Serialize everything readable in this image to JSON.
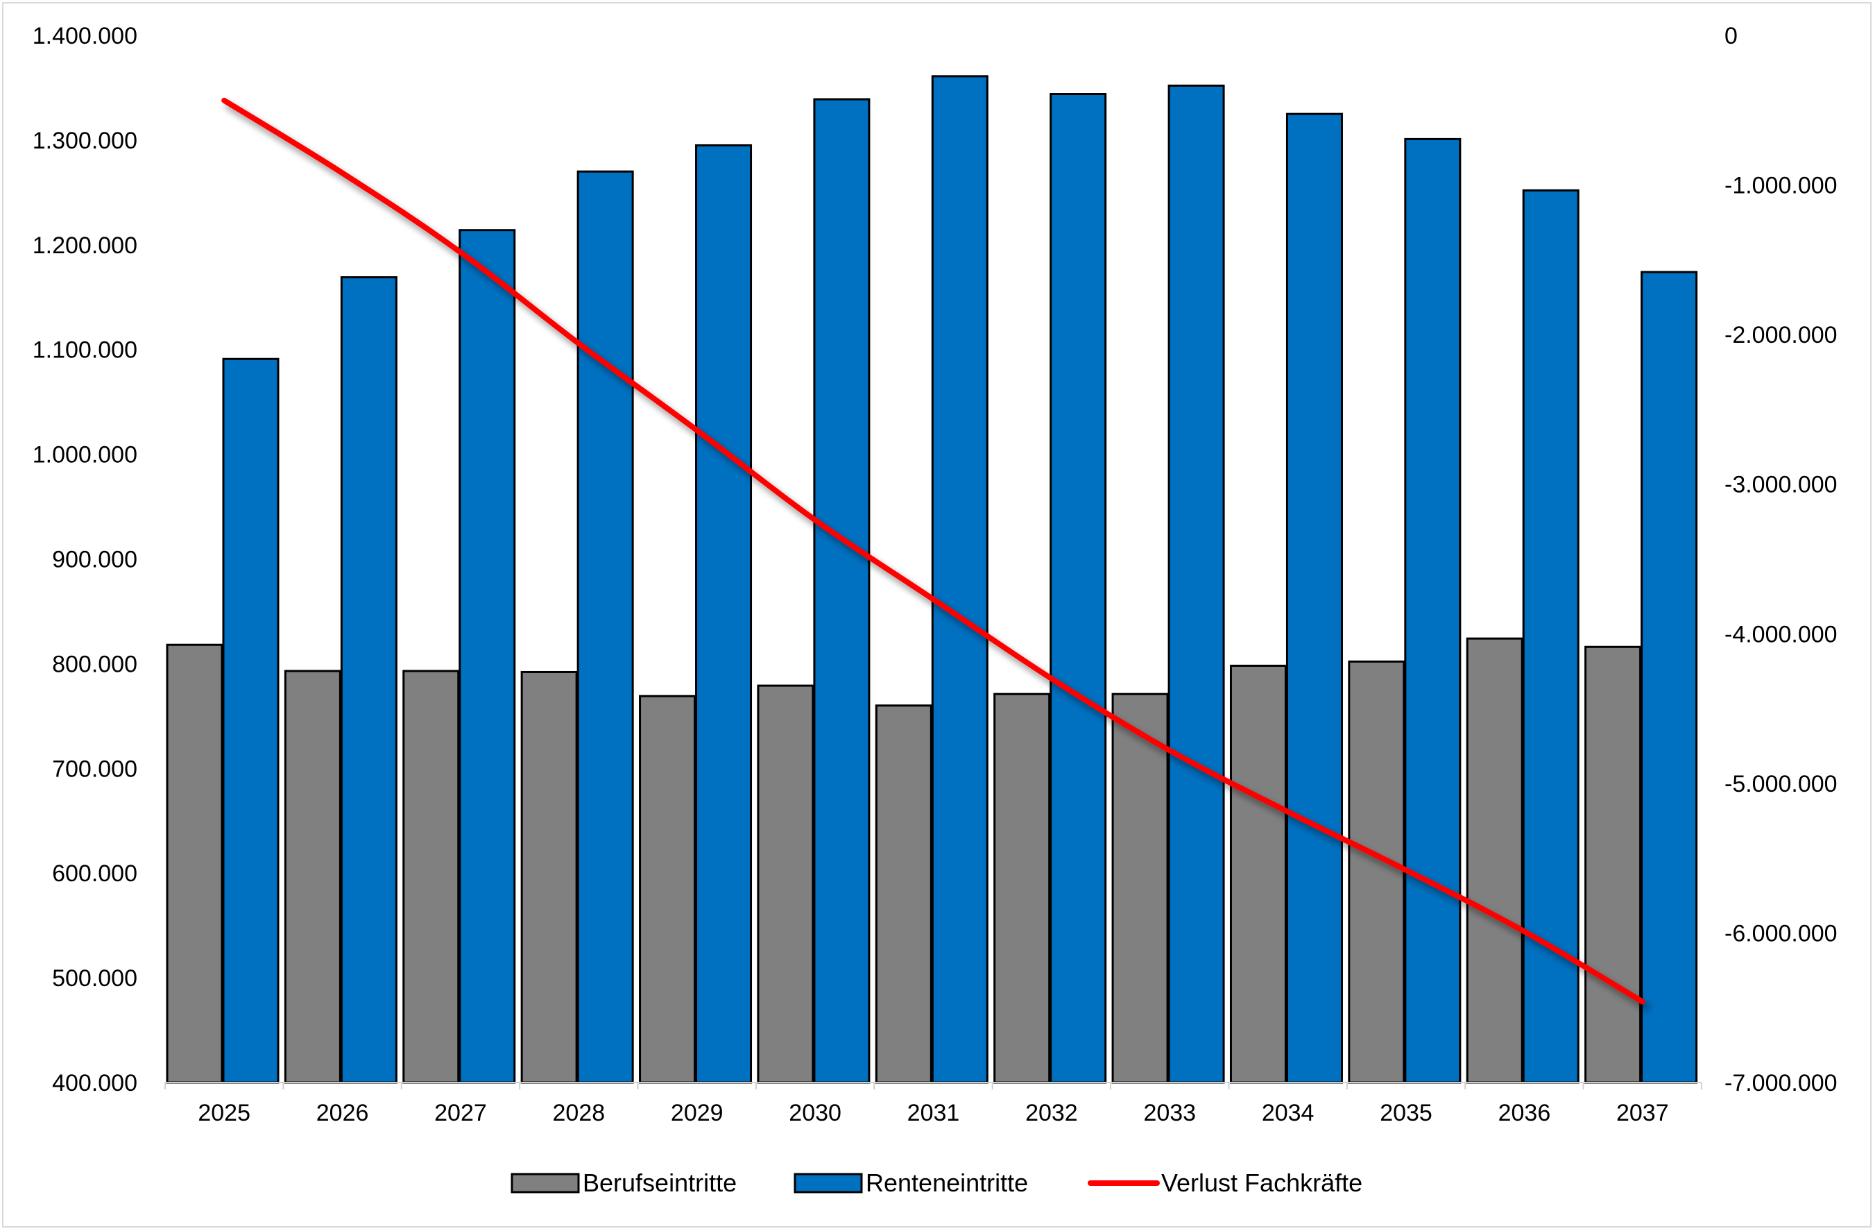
{
  "chart_data": {
    "type": "bar",
    "categories": [
      "2025",
      "2026",
      "2027",
      "2028",
      "2029",
      "2030",
      "2031",
      "2032",
      "2033",
      "2034",
      "2035",
      "2036",
      "2037"
    ],
    "series": [
      {
        "name": "Berufseintritte",
        "kind": "bar",
        "axis": "left",
        "color": "#808080",
        "values": [
          818000,
          793000,
          793000,
          792000,
          769000,
          779000,
          760000,
          771000,
          771000,
          798000,
          802000,
          824000,
          816000
        ]
      },
      {
        "name": "Renteneintritte",
        "kind": "bar",
        "axis": "left",
        "color": "#0070C0",
        "values": [
          1091000,
          1169000,
          1214000,
          1270000,
          1295000,
          1339000,
          1361000,
          1344000,
          1352000,
          1325000,
          1301000,
          1252000,
          1174000
        ]
      },
      {
        "name": "Verlust Fachkräfte",
        "kind": "line",
        "axis": "right",
        "color": "#FF0000",
        "values": [
          -435000,
          -920000,
          -1450000,
          -2060000,
          -2640000,
          -3240000,
          -3770000,
          -4300000,
          -4780000,
          -5190000,
          -5580000,
          -5990000,
          -6460000
        ]
      }
    ],
    "y_left": {
      "range": [
        400000,
        1400000
      ],
      "ticks": [
        400000,
        500000,
        600000,
        700000,
        800000,
        900000,
        1000000,
        1100000,
        1200000,
        1300000,
        1400000
      ],
      "tick_labels": [
        "400.000",
        "500.000",
        "600.000",
        "700.000",
        "800.000",
        "900.000",
        "1.000.000",
        "1.100.000",
        "1.200.000",
        "1.300.000",
        "1.400.000"
      ]
    },
    "y_right": {
      "range": [
        -7000000,
        0
      ],
      "ticks": [
        0,
        -1000000,
        -2000000,
        -3000000,
        -4000000,
        -5000000,
        -6000000,
        -7000000
      ],
      "tick_labels": [
        "0",
        "-1.000.000",
        "-2.000.000",
        "-3.000.000",
        "-4.000.000",
        "-5.000.000",
        "-6.000.000",
        "-7.000.000"
      ]
    },
    "title": "",
    "xlabel": "",
    "ylabel": "",
    "grid": false,
    "legend_position": "bottom"
  }
}
